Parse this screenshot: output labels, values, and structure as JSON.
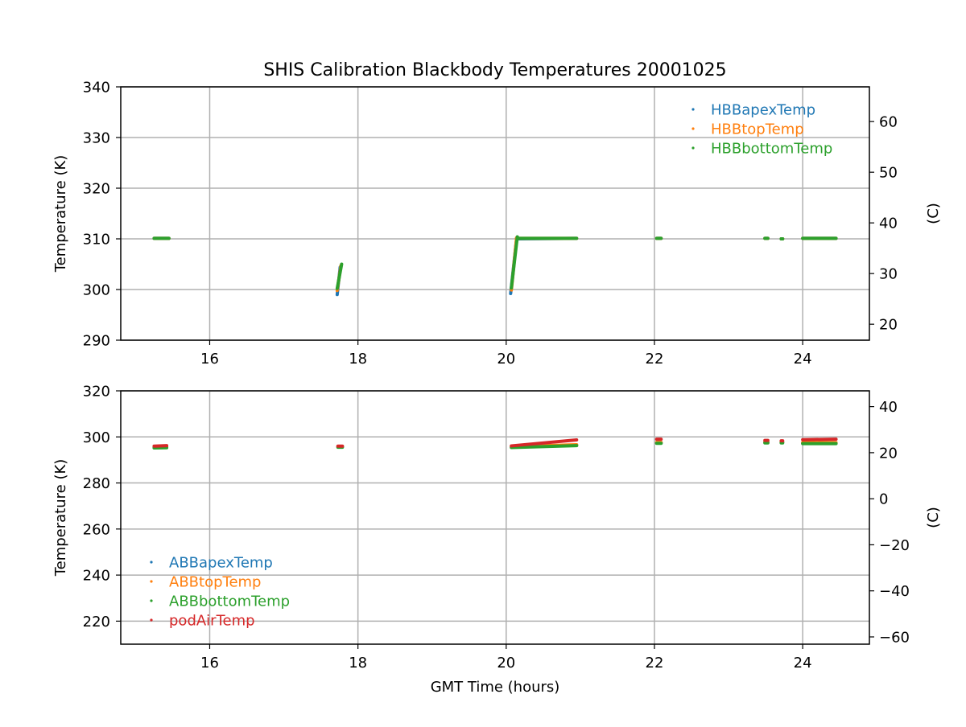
{
  "title": "SHIS Calibration Blackbody Temperatures 20001025",
  "chart_data": [
    {
      "type": "scatter",
      "ylabel": "Temperature (K)",
      "y2label": "(C)",
      "xlabel": "",
      "xlim": [
        14.8,
        24.9
      ],
      "ylim": [
        290,
        340
      ],
      "y2lim": [
        16.85,
        66.85
      ],
      "xticks": [
        16,
        18,
        20,
        22,
        24
      ],
      "yticks": [
        290,
        300,
        310,
        320,
        330,
        340
      ],
      "y2ticks": [
        20,
        30,
        40,
        50,
        60
      ],
      "grid": true,
      "legend_position": "upper right",
      "series": [
        {
          "name": "HBBapexTemp",
          "color": "#1f77b4",
          "segments": [
            {
              "x": [
                15.25,
                15.45
              ],
              "y": [
                310.1,
                310.1
              ]
            },
            {
              "x": [
                17.72,
                17.76
              ],
              "y": [
                299.0,
                304.4
              ]
            },
            {
              "x": [
                20.06,
                20.14
              ],
              "y": [
                299.2,
                310.0
              ]
            },
            {
              "x": [
                20.14,
                20.95
              ],
              "y": [
                310.0,
                310.1
              ]
            },
            {
              "x": [
                22.03,
                22.09
              ],
              "y": [
                310.1,
                310.1
              ]
            },
            {
              "x": [
                23.49,
                23.53
              ],
              "y": [
                310.1,
                310.1
              ]
            },
            {
              "x": [
                23.71,
                23.73
              ],
              "y": [
                310.0,
                310.0
              ]
            },
            {
              "x": [
                24.0,
                24.45
              ],
              "y": [
                310.1,
                310.1
              ]
            }
          ]
        },
        {
          "name": "HBBtopTemp",
          "color": "#ff7f0e",
          "segments": [
            {
              "x": [
                15.25,
                15.45
              ],
              "y": [
                310.1,
                310.1
              ]
            },
            {
              "x": [
                17.72,
                17.77
              ],
              "y": [
                299.8,
                304.7
              ]
            },
            {
              "x": [
                20.07,
                20.14
              ],
              "y": [
                299.9,
                310.2
              ]
            },
            {
              "x": [
                20.14,
                20.95
              ],
              "y": [
                310.1,
                310.1
              ]
            },
            {
              "x": [
                22.03,
                22.09
              ],
              "y": [
                310.1,
                310.1
              ]
            },
            {
              "x": [
                23.49,
                23.53
              ],
              "y": [
                310.1,
                310.1
              ]
            },
            {
              "x": [
                23.71,
                23.73
              ],
              "y": [
                310.0,
                310.0
              ]
            },
            {
              "x": [
                24.0,
                24.45
              ],
              "y": [
                310.1,
                310.1
              ]
            }
          ]
        },
        {
          "name": "HBBbottomTemp",
          "color": "#2ca02c",
          "segments": [
            {
              "x": [
                15.25,
                15.45
              ],
              "y": [
                310.1,
                310.1
              ]
            },
            {
              "x": [
                17.72,
                17.78
              ],
              "y": [
                300.2,
                305.0
              ]
            },
            {
              "x": [
                20.07,
                20.15
              ],
              "y": [
                300.3,
                310.4
              ]
            },
            {
              "x": [
                20.15,
                20.95
              ],
              "y": [
                310.1,
                310.1
              ]
            },
            {
              "x": [
                22.03,
                22.09
              ],
              "y": [
                310.1,
                310.1
              ]
            },
            {
              "x": [
                23.49,
                23.53
              ],
              "y": [
                310.1,
                310.1
              ]
            },
            {
              "x": [
                23.71,
                23.73
              ],
              "y": [
                310.0,
                310.0
              ]
            },
            {
              "x": [
                24.0,
                24.45
              ],
              "y": [
                310.1,
                310.1
              ]
            }
          ]
        }
      ]
    },
    {
      "type": "scatter",
      "ylabel": "Temperature (K)",
      "y2label": "(C)",
      "xlabel": "GMT Time (hours)",
      "xlim": [
        14.8,
        24.9
      ],
      "ylim": [
        210,
        320
      ],
      "y2lim": [
        -63.15,
        46.85
      ],
      "xticks": [
        16,
        18,
        20,
        22,
        24
      ],
      "yticks": [
        220,
        240,
        260,
        280,
        300,
        320
      ],
      "y2ticks": [
        -60,
        -40,
        -20,
        0,
        20,
        40
      ],
      "y2ticklabels": [
        "−60",
        "−40",
        "−20",
        "0",
        "20",
        "40"
      ],
      "grid": true,
      "legend_position": "lower left",
      "series": [
        {
          "name": "ABBapexTemp",
          "color": "#1f77b4",
          "segments": [
            {
              "x": [
                15.25,
                15.42
              ],
              "y": [
                295.4,
                295.5
              ]
            },
            {
              "x": [
                17.73,
                17.79
              ],
              "y": [
                295.7,
                295.7
              ]
            },
            {
              "x": [
                20.07,
                20.95
              ],
              "y": [
                295.6,
                296.4
              ]
            },
            {
              "x": [
                22.03,
                22.09
              ],
              "y": [
                297.4,
                297.4
              ]
            },
            {
              "x": [
                23.49,
                23.53
              ],
              "y": [
                297.6,
                297.6
              ]
            },
            {
              "x": [
                23.71,
                23.73
              ],
              "y": [
                297.6,
                297.6
              ]
            },
            {
              "x": [
                24.0,
                24.45
              ],
              "y": [
                297.3,
                297.3
              ]
            }
          ]
        },
        {
          "name": "ABBtopTemp",
          "color": "#ff7f0e",
          "segments": [
            {
              "x": [
                15.25,
                15.42
              ],
              "y": [
                295.6,
                295.7
              ]
            },
            {
              "x": [
                17.73,
                17.79
              ],
              "y": [
                295.9,
                295.9
              ]
            },
            {
              "x": [
                20.07,
                20.95
              ],
              "y": [
                295.8,
                296.6
              ]
            },
            {
              "x": [
                22.03,
                22.09
              ],
              "y": [
                297.6,
                297.6
              ]
            },
            {
              "x": [
                23.49,
                23.53
              ],
              "y": [
                297.8,
                297.8
              ]
            },
            {
              "x": [
                23.71,
                23.73
              ],
              "y": [
                297.8,
                297.8
              ]
            },
            {
              "x": [
                24.0,
                24.45
              ],
              "y": [
                297.5,
                297.5
              ]
            }
          ]
        },
        {
          "name": "ABBbottomTemp",
          "color": "#2ca02c",
          "segments": [
            {
              "x": [
                15.25,
                15.42
              ],
              "y": [
                295.2,
                295.3
              ]
            },
            {
              "x": [
                17.73,
                17.79
              ],
              "y": [
                295.5,
                295.5
              ]
            },
            {
              "x": [
                20.07,
                20.95
              ],
              "y": [
                295.4,
                296.2
              ]
            },
            {
              "x": [
                22.03,
                22.09
              ],
              "y": [
                297.2,
                297.2
              ]
            },
            {
              "x": [
                23.49,
                23.53
              ],
              "y": [
                297.4,
                297.4
              ]
            },
            {
              "x": [
                23.71,
                23.73
              ],
              "y": [
                297.4,
                297.4
              ]
            },
            {
              "x": [
                24.0,
                24.45
              ],
              "y": [
                297.1,
                297.1
              ]
            }
          ]
        },
        {
          "name": "podAirTemp",
          "color": "#d62728",
          "segments": [
            {
              "x": [
                15.25,
                15.42
              ],
              "y": [
                296.0,
                296.2
              ]
            },
            {
              "x": [
                17.73,
                17.79
              ],
              "y": [
                296.0,
                296.0
              ]
            },
            {
              "x": [
                20.07,
                20.95
              ],
              "y": [
                296.1,
                298.7
              ]
            },
            {
              "x": [
                22.03,
                22.09
              ],
              "y": [
                299.0,
                299.0
              ]
            },
            {
              "x": [
                23.49,
                23.53
              ],
              "y": [
                298.5,
                298.5
              ]
            },
            {
              "x": [
                23.71,
                23.73
              ],
              "y": [
                298.3,
                298.3
              ]
            },
            {
              "x": [
                24.0,
                24.45
              ],
              "y": [
                298.8,
                299.0
              ]
            }
          ]
        }
      ]
    }
  ]
}
